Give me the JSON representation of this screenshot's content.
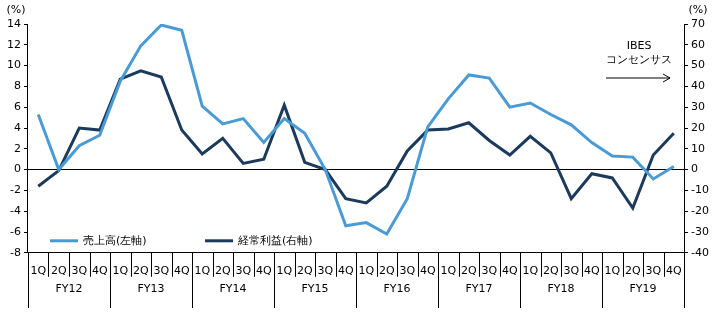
{
  "chart_data": {
    "type": "line",
    "categories": [
      "1Q",
      "2Q",
      "3Q",
      "4Q",
      "1Q",
      "2Q",
      "3Q",
      "4Q",
      "1Q",
      "2Q",
      "3Q",
      "4Q",
      "1Q",
      "2Q",
      "3Q",
      "4Q",
      "1Q",
      "2Q",
      "3Q",
      "4Q",
      "1Q",
      "2Q",
      "3Q",
      "4Q",
      "1Q",
      "2Q",
      "3Q",
      "4Q",
      "1Q",
      "2Q",
      "3Q",
      "4Q"
    ],
    "x_groups": [
      "FY12",
      "FY13",
      "FY14",
      "FY15",
      "FY16",
      "FY17",
      "FY18",
      "FY19"
    ],
    "ylabel": "(%)",
    "y2label": "(%)",
    "annotation": [
      "IBES",
      "コンセンサス"
    ],
    "series": [
      {
        "name": "売上高(左軸)",
        "color": "#4a9ad6",
        "axis": "y",
        "marker": "none",
        "line_style": "solid",
        "values": [
          5.3,
          0.0,
          2.3,
          3.3,
          8.5,
          11.9,
          13.9,
          13.4,
          6.1,
          4.4,
          4.9,
          2.6,
          4.9,
          3.5,
          0.0,
          -5.4,
          -5.1,
          -6.2,
          -2.8,
          4.1,
          6.8,
          9.1,
          8.8,
          6.0,
          6.4,
          5.3,
          4.3,
          2.6,
          1.3,
          1.2,
          -0.9,
          0.3
        ]
      },
      {
        "name": "経常利益(右軸)",
        "color": "#1b3a5c",
        "axis": "y2",
        "marker": "none",
        "line_style": "solid",
        "values": [
          -8,
          -0.5,
          20,
          19,
          43.5,
          47.5,
          44.5,
          19,
          7.5,
          15,
          3,
          5,
          31,
          3.5,
          0,
          -14,
          -16,
          -8,
          9,
          19,
          19.5,
          22.5,
          14,
          7,
          16,
          8,
          -14,
          -2,
          -4,
          -18.5,
          7,
          17.5
        ]
      }
    ],
    "ylim": [
      -8,
      14
    ],
    "yticks": [
      -8,
      -6,
      -4,
      -2,
      0,
      2,
      4,
      6,
      8,
      10,
      12,
      14
    ],
    "y2lim": [
      -40,
      70
    ],
    "y2ticks": [
      -40,
      -30,
      -20,
      -10,
      0,
      10,
      20,
      30,
      40,
      50,
      60,
      70
    ],
    "grid": false,
    "legend": "lower left"
  }
}
